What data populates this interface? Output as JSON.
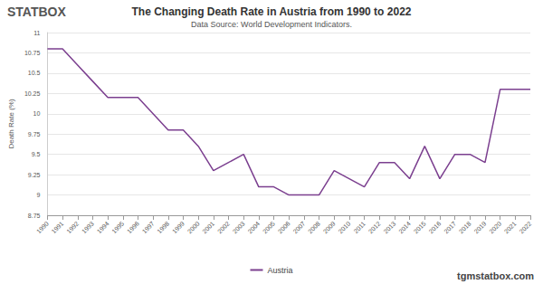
{
  "chart_data": {
    "type": "line",
    "title": "The Changing Death Rate in Austria from 1990 to 2022",
    "subtitle": "Data Source: World Development Indicators.",
    "y_label": "Death Rate (%)",
    "annotations": [
      "STATBOX",
      "tgmstatbox.com"
    ],
    "categories": [
      "1990",
      "1991",
      "1992",
      "1993",
      "1994",
      "1995",
      "1996",
      "1997",
      "1998",
      "1999",
      "2000",
      "2001",
      "2002",
      "2003",
      "2004",
      "2005",
      "2006",
      "2007",
      "2008",
      "2009",
      "2010",
      "2011",
      "2012",
      "2013",
      "2014",
      "2015",
      "2016",
      "2017",
      "2018",
      "2019",
      "2020",
      "2021",
      "2022"
    ],
    "series": [
      {
        "name": "Austria",
        "color": "#7b3f8f",
        "values": [
          10.8,
          10.8,
          10.6,
          10.4,
          10.2,
          10.2,
          10.2,
          10.0,
          9.8,
          9.8,
          9.6,
          9.3,
          9.4,
          9.5,
          9.1,
          9.1,
          9.0,
          9.0,
          9.0,
          9.3,
          9.2,
          9.1,
          9.4,
          9.4,
          9.2,
          9.6,
          9.2,
          9.5,
          9.5,
          9.4,
          10.3,
          10.3,
          10.3
        ]
      }
    ],
    "ylim": [
      8.75,
      11
    ],
    "yticks": [
      8.75,
      9,
      9.25,
      9.5,
      9.75,
      10,
      10.25,
      10.5,
      10.75,
      11
    ],
    "grid": true,
    "legend": "bottom"
  }
}
